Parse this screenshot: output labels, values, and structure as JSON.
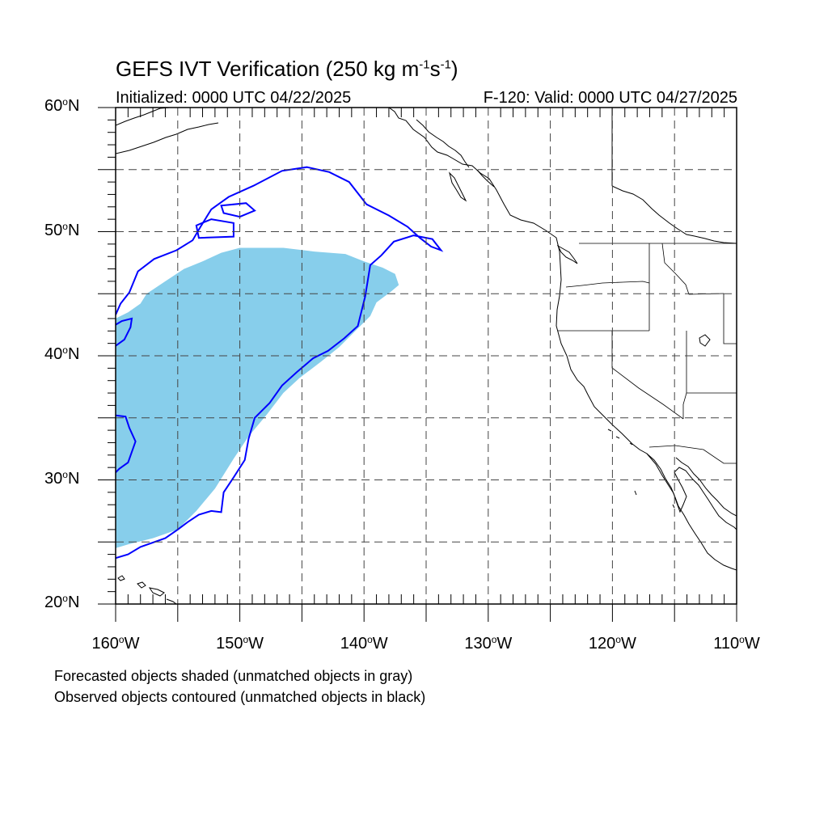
{
  "title": {
    "text": "GEFS IVT Verification (250 kg m",
    "sup1": "-1",
    "mid": "s",
    "sup2": "-1",
    "end": ")"
  },
  "initialized": "Initialized: 0000 UTC 04/22/2025",
  "valid": "F-120: Valid: 0000 UTC 04/27/2025",
  "lat_labels": [
    {
      "deg": "60",
      "hemi": "N",
      "value": 60
    },
    {
      "deg": "50",
      "hemi": "N",
      "value": 50
    },
    {
      "deg": "40",
      "hemi": "N",
      "value": 40
    },
    {
      "deg": "30",
      "hemi": "N",
      "value": 30
    },
    {
      "deg": "20",
      "hemi": "N",
      "value": 20
    }
  ],
  "lon_labels": [
    {
      "deg": "160",
      "hemi": "W",
      "value": -160
    },
    {
      "deg": "150",
      "hemi": "W",
      "value": -150
    },
    {
      "deg": "140",
      "hemi": "W",
      "value": -140
    },
    {
      "deg": "130",
      "hemi": "W",
      "value": -130
    },
    {
      "deg": "120",
      "hemi": "W",
      "value": -120
    },
    {
      "deg": "110",
      "hemi": "W",
      "value": -110
    }
  ],
  "notes": [
    "Forecasted objects shaded (unmatched objects in gray)",
    "Observed objects contoured (unmatched objects in black)"
  ],
  "colors": {
    "forecast_fill": "#87ceeb",
    "observed_contour": "#0000ff",
    "coastline": "#000000",
    "grid": "#444444"
  },
  "extent": {
    "lon_min": -160,
    "lon_max": -110,
    "lat_min": 20,
    "lat_max": 60
  },
  "forecast_object": [
    [
      -160,
      43.0
    ],
    [
      -159,
      43.5
    ],
    [
      -158,
      44.2
    ],
    [
      -157.5,
      45.0
    ],
    [
      -156,
      46.0
    ],
    [
      -154.5,
      47.0
    ],
    [
      -153,
      47.6
    ],
    [
      -151.5,
      48.3
    ],
    [
      -150,
      48.7
    ],
    [
      -146.5,
      48.7
    ],
    [
      -144,
      48.4
    ],
    [
      -141.5,
      48.2
    ],
    [
      -140,
      47.6
    ],
    [
      -138.5,
      47.1
    ],
    [
      -137.5,
      46.6
    ],
    [
      -137.2,
      45.7
    ],
    [
      -137.8,
      45.2
    ],
    [
      -139,
      44.3
    ],
    [
      -139.5,
      43.2
    ],
    [
      -140.5,
      42.2
    ],
    [
      -142,
      40.7
    ],
    [
      -143.5,
      39.5
    ],
    [
      -145.2,
      38.2
    ],
    [
      -146.5,
      37.0
    ],
    [
      -147.8,
      35.3
    ],
    [
      -149.3,
      33.5
    ],
    [
      -150.5,
      31.7
    ],
    [
      -152,
      29.3
    ],
    [
      -153.5,
      27.5
    ],
    [
      -155,
      26.0
    ],
    [
      -157,
      25.3
    ],
    [
      -159,
      24.8
    ],
    [
      -160,
      24.5
    ]
  ],
  "observed_object_1": [
    [
      -160,
      23.7
    ],
    [
      -159,
      24.0
    ],
    [
      -158,
      24.6
    ],
    [
      -156,
      25.3
    ],
    [
      -155,
      26.0
    ],
    [
      -154.2,
      26.6
    ],
    [
      -153.3,
      27.2
    ],
    [
      -152.3,
      27.5
    ],
    [
      -151.5,
      27.4
    ],
    [
      -151.3,
      29.0
    ],
    [
      -150.5,
      30.2
    ],
    [
      -149.6,
      31.6
    ],
    [
      -149.3,
      33.3
    ],
    [
      -148.8,
      35.0
    ],
    [
      -147.6,
      36.2
    ],
    [
      -146.6,
      37.6
    ],
    [
      -145.4,
      38.7
    ],
    [
      -144.1,
      39.8
    ],
    [
      -142.9,
      40.4
    ],
    [
      -141.6,
      41.4
    ],
    [
      -140.5,
      42.4
    ],
    [
      -139.9,
      44.8
    ],
    [
      -139.5,
      47.3
    ],
    [
      -138.6,
      48.1
    ],
    [
      -137.6,
      49.2
    ],
    [
      -136.0,
      49.7
    ],
    [
      -134.5,
      49.4
    ],
    [
      -133.8,
      48.5
    ],
    [
      -134.6,
      48.8
    ],
    [
      -135.5,
      49.5
    ],
    [
      -136.5,
      50.4
    ],
    [
      -138.0,
      51.3
    ],
    [
      -139.8,
      52.2
    ],
    [
      -141.2,
      54.0
    ],
    [
      -142.8,
      54.8
    ],
    [
      -144.6,
      55.2
    ],
    [
      -146.6,
      54.9
    ],
    [
      -148.9,
      53.7
    ],
    [
      -150.9,
      52.8
    ],
    [
      -152.3,
      51.8
    ],
    [
      -153.1,
      50.5
    ],
    [
      -153.8,
      49.3
    ],
    [
      -155.1,
      48.5
    ],
    [
      -156.9,
      47.8
    ],
    [
      -158.2,
      46.8
    ],
    [
      -158.9,
      45.1
    ],
    [
      -159.6,
      44.2
    ],
    [
      -160,
      43.3
    ]
  ],
  "observed_object_2": [
    [
      -160,
      40.8
    ],
    [
      -159.3,
      41.3
    ],
    [
      -158.8,
      42.3
    ],
    [
      -158.7,
      43.0
    ],
    [
      -159.5,
      42.8
    ],
    [
      -160,
      42.5
    ]
  ],
  "observed_object_3": [
    [
      -160,
      35.2
    ],
    [
      -159.2,
      35.1
    ],
    [
      -158.9,
      34.2
    ],
    [
      -158.4,
      33.1
    ],
    [
      -159.0,
      31.4
    ],
    [
      -159.7,
      30.9
    ],
    [
      -160,
      30.6
    ]
  ],
  "observed_object_4": [
    [
      -153.3,
      49.5
    ],
    [
      -150.5,
      49.6
    ],
    [
      -150.5,
      50.7
    ],
    [
      -152.3,
      51.0
    ],
    [
      -153.5,
      50.5
    ]
  ],
  "observed_object_5": [
    [
      -151.5,
      52.1
    ],
    [
      -149.5,
      52.3
    ],
    [
      -148.8,
      51.7
    ],
    [
      -150.0,
      51.2
    ],
    [
      -151.3,
      51.5
    ]
  ]
}
